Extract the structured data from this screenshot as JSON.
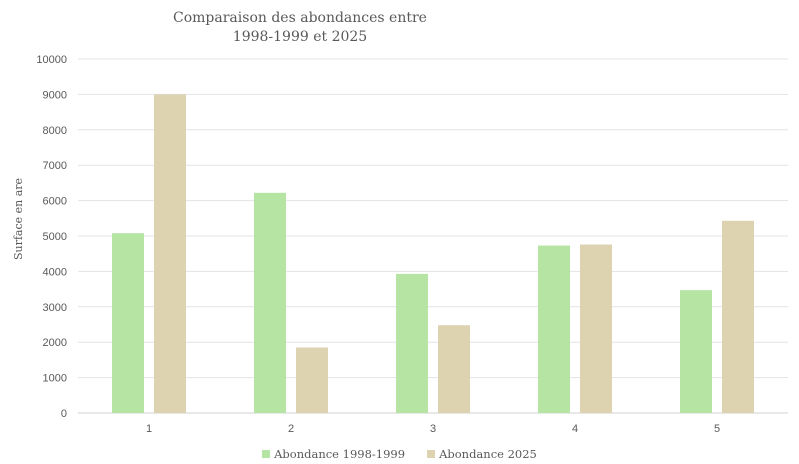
{
  "chart_data": {
    "type": "bar",
    "title_line1": "Comparaison des abondances entre",
    "title_line2": "1998-1999 et 2025",
    "xlabel": "",
    "ylabel": "Surface en are",
    "categories": [
      "1",
      "2",
      "3",
      "4",
      "5"
    ],
    "ylim": [
      0,
      10000
    ],
    "yticks": [
      "0",
      "1000",
      "2000",
      "3000",
      "4000",
      "5000",
      "6000",
      "7000",
      "8000",
      "9000",
      "10000"
    ],
    "grid": true,
    "legend_position": "bottom",
    "series": [
      {
        "name": "Abondance 1998-1999",
        "color": "#b5e4a3",
        "values": [
          5080,
          6220,
          3930,
          4730,
          3470
        ]
      },
      {
        "name": "Abondance 2025",
        "color": "#ddd3b0",
        "values": [
          9000,
          1850,
          2480,
          4760,
          5430
        ]
      }
    ]
  }
}
